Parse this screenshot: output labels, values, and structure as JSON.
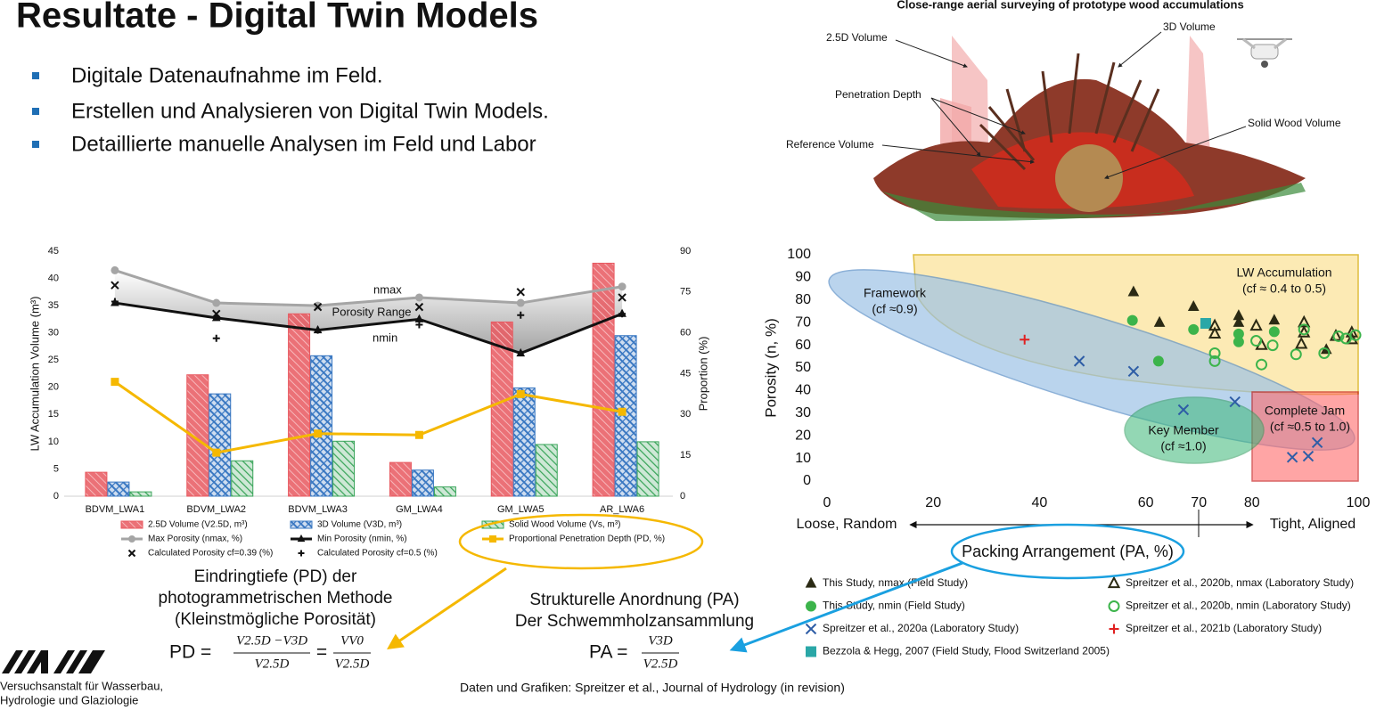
{
  "title": "Resultate - Digital Twin Models",
  "bullets": [
    "Digitale Datenaufnahme im Feld.",
    "Erstellen und Analysieren von Digital Twin Models.",
    "Detaillierte manuelle Analysen im Feld und Labor"
  ],
  "figure": {
    "caption": "Close-range aerial surveying of prototype wood accumulations",
    "labels": [
      "2.5D Volume",
      "3D Volume",
      "Penetration Depth",
      "Solid Wood Volume",
      "Reference Volume"
    ]
  },
  "chart_data": [
    {
      "type": "bar",
      "categories": [
        "BDVM_LWA1",
        "BDVM_LWA2",
        "BDVM_LWA3",
        "GM_LWA4",
        "GM_LWA5",
        "AR_LWA6"
      ],
      "ylabel": "LW Accumulation Volume (m³)",
      "y2label": "Proportion (%)",
      "ylim": [
        0,
        45
      ],
      "yticks": [
        0,
        5,
        10,
        15,
        20,
        25,
        30,
        35,
        40,
        45
      ],
      "y2lim": [
        0,
        90
      ],
      "y2ticks": [
        0,
        15,
        30,
        45,
        60,
        75,
        90
      ],
      "annotations": [
        "nmax",
        "Porosity Range",
        "nmin"
      ],
      "series": [
        {
          "name": "2.5D Volume (V2.5D, m³)",
          "kind": "bar",
          "color": "#e8585f",
          "values": [
            4.4,
            22.3,
            33.5,
            6.2,
            32,
            42.8
          ]
        },
        {
          "name": "3D Volume (V3D, m³)",
          "kind": "bar",
          "color": "#3a78c2",
          "values": [
            2.6,
            18.8,
            25.8,
            4.8,
            19.9,
            29.5
          ]
        },
        {
          "name": "Solid Wood Volume (Vs, m³)",
          "kind": "bar",
          "color": "#3aa55a",
          "values": [
            0.8,
            6.5,
            10.1,
            1.7,
            9.5,
            10
          ]
        },
        {
          "name": "Max Porosity (nmax, %)",
          "kind": "line",
          "marker": "circle",
          "axis": "y2",
          "color": "#a5a5a5",
          "values": [
            83,
            71,
            70,
            73,
            71,
            77
          ]
        },
        {
          "name": "Min Porosity (nmin, %)",
          "kind": "line",
          "marker": "triangle",
          "axis": "y2",
          "color": "#111111",
          "values": [
            71,
            65.5,
            61,
            65,
            52.5,
            67
          ]
        },
        {
          "name": "Proportional Penetration Depth (PD, %)",
          "kind": "line",
          "marker": "square",
          "axis": "y2",
          "color": "#f5b800",
          "values": [
            42,
            16,
            23,
            22.5,
            37.5,
            31
          ]
        },
        {
          "name": "Calculated Porosity cf=0.39 (%)",
          "kind": "markers",
          "marker": "x",
          "axis": "y2",
          "color": "#111111",
          "values": [
            77.5,
            67,
            69.5,
            69.5,
            75,
            73
          ]
        },
        {
          "name": "Calculated Porosity cf=0.5 (%)",
          "kind": "markers",
          "marker": "plus",
          "axis": "y2",
          "color": "#111111",
          "values": [
            71.5,
            58,
            61,
            63,
            66.5,
            67
          ]
        }
      ]
    },
    {
      "type": "scatter",
      "xlabel": "Packing Arrangement (PA, %)",
      "ylabel": "Porosity (n, %)",
      "xlim": [
        0,
        100
      ],
      "xticks": [
        0,
        20,
        40,
        60,
        70,
        80,
        100
      ],
      "ylim": [
        0,
        100
      ],
      "yticks": [
        0,
        10,
        20,
        30,
        40,
        50,
        60,
        70,
        80,
        90,
        100
      ],
      "x_ends": [
        "Loose, Random",
        "Tight, Aligned"
      ],
      "regions": [
        [
          "Framework",
          "(cf ≈0.9)"
        ],
        [
          "LW Accumulation",
          "(cf ≈ 0.4 to 0.5)"
        ],
        [
          "Key Member",
          "(cf ≈1.0)"
        ],
        [
          "Complete Jam",
          "(cf ≈0.5 to 1.0)"
        ]
      ],
      "series": [
        {
          "name": "This Study, nmax (Field Study)",
          "marker": "triangle",
          "color": "#2b2a14",
          "x": [
            57.7,
            62.6,
            69,
            77.5,
            77.5,
            84.2,
            94
          ],
          "y": [
            83.5,
            70,
            77,
            73,
            70,
            71,
            58
          ]
        },
        {
          "name": "This Study, nmin (Field Study)",
          "marker": "circle",
          "color": "#3cb44b",
          "x": [
            57.5,
            62.4,
            69,
            77.5,
            77.5,
            84.2
          ],
          "y": [
            71,
            53,
            67,
            65,
            61.5,
            66
          ]
        },
        {
          "name": "Spreitzer et al., 2020a (Laboratory Study)",
          "marker": "x",
          "color": "#2e5da6",
          "x": [
            47.5,
            57.7,
            67.1,
            76.8,
            87.6,
            90.6,
            92.3
          ],
          "y": [
            53,
            48.5,
            31.5,
            35,
            10.5,
            11,
            17
          ]
        },
        {
          "name": "Bezzola & Hegg, 2007 (Field Study, Flood Switzerland 2005)",
          "marker": "square",
          "color": "#2aa7a7",
          "x": [
            71.3
          ],
          "y": [
            69.7
          ]
        },
        {
          "name": "Spreitzer et al., 2020b, nmax (Laboratory Study)",
          "marker": "triangle-open",
          "color": "#2b2a14",
          "x": [
            73,
            73,
            80.8,
            81.8,
            89.8,
            89.8,
            89.3,
            95.8,
            98.8,
            98.8
          ],
          "y": [
            68.5,
            65,
            68.5,
            60,
            70,
            65.5,
            60.5,
            64,
            65.5,
            62.5
          ]
        },
        {
          "name": "Spreitzer et al., 2020b, nmin (Laboratory Study)",
          "marker": "circle-open",
          "color": "#3cb44b",
          "x": [
            73,
            73,
            80.8,
            81.8,
            83.9,
            88.3,
            89.8,
            93.6,
            96.3,
            99.5,
            97.7
          ],
          "y": [
            56.5,
            53,
            62,
            51.5,
            60,
            56,
            67,
            56.5,
            64,
            64.5,
            63
          ]
        },
        {
          "name": "Spreitzer et al., 2021b (Laboratory Study)",
          "marker": "plus",
          "color": "#e02020",
          "x": [
            37.2
          ],
          "y": [
            62.5
          ]
        }
      ]
    }
  ],
  "pd_note": [
    "Eindringtiefe (PD) der",
    "photogrammetrischen Methode",
    "(Kleinstmögliche Porosität)"
  ],
  "pd_formula": {
    "lhs": "PD =",
    "numerator1": "V2.5D −V3D",
    "denominator1": "V2.5D",
    "equals": "=",
    "numerator2": "VV0",
    "denominator2": "V2.5D"
  },
  "pa_note": [
    "Strukturelle Anordnung (PA)",
    "Der Schwemmholzansammlung"
  ],
  "pa_formula": {
    "lhs": "PA =",
    "numerator": "V3D",
    "denominator": "V2.5D"
  },
  "source": "Daten und Grafiken: Spreitzer et al., Journal of Hydrology (in revision)",
  "logo": [
    "Versuchsanstalt für Wasserbau,",
    "Hydrologie und Glaziologie"
  ]
}
